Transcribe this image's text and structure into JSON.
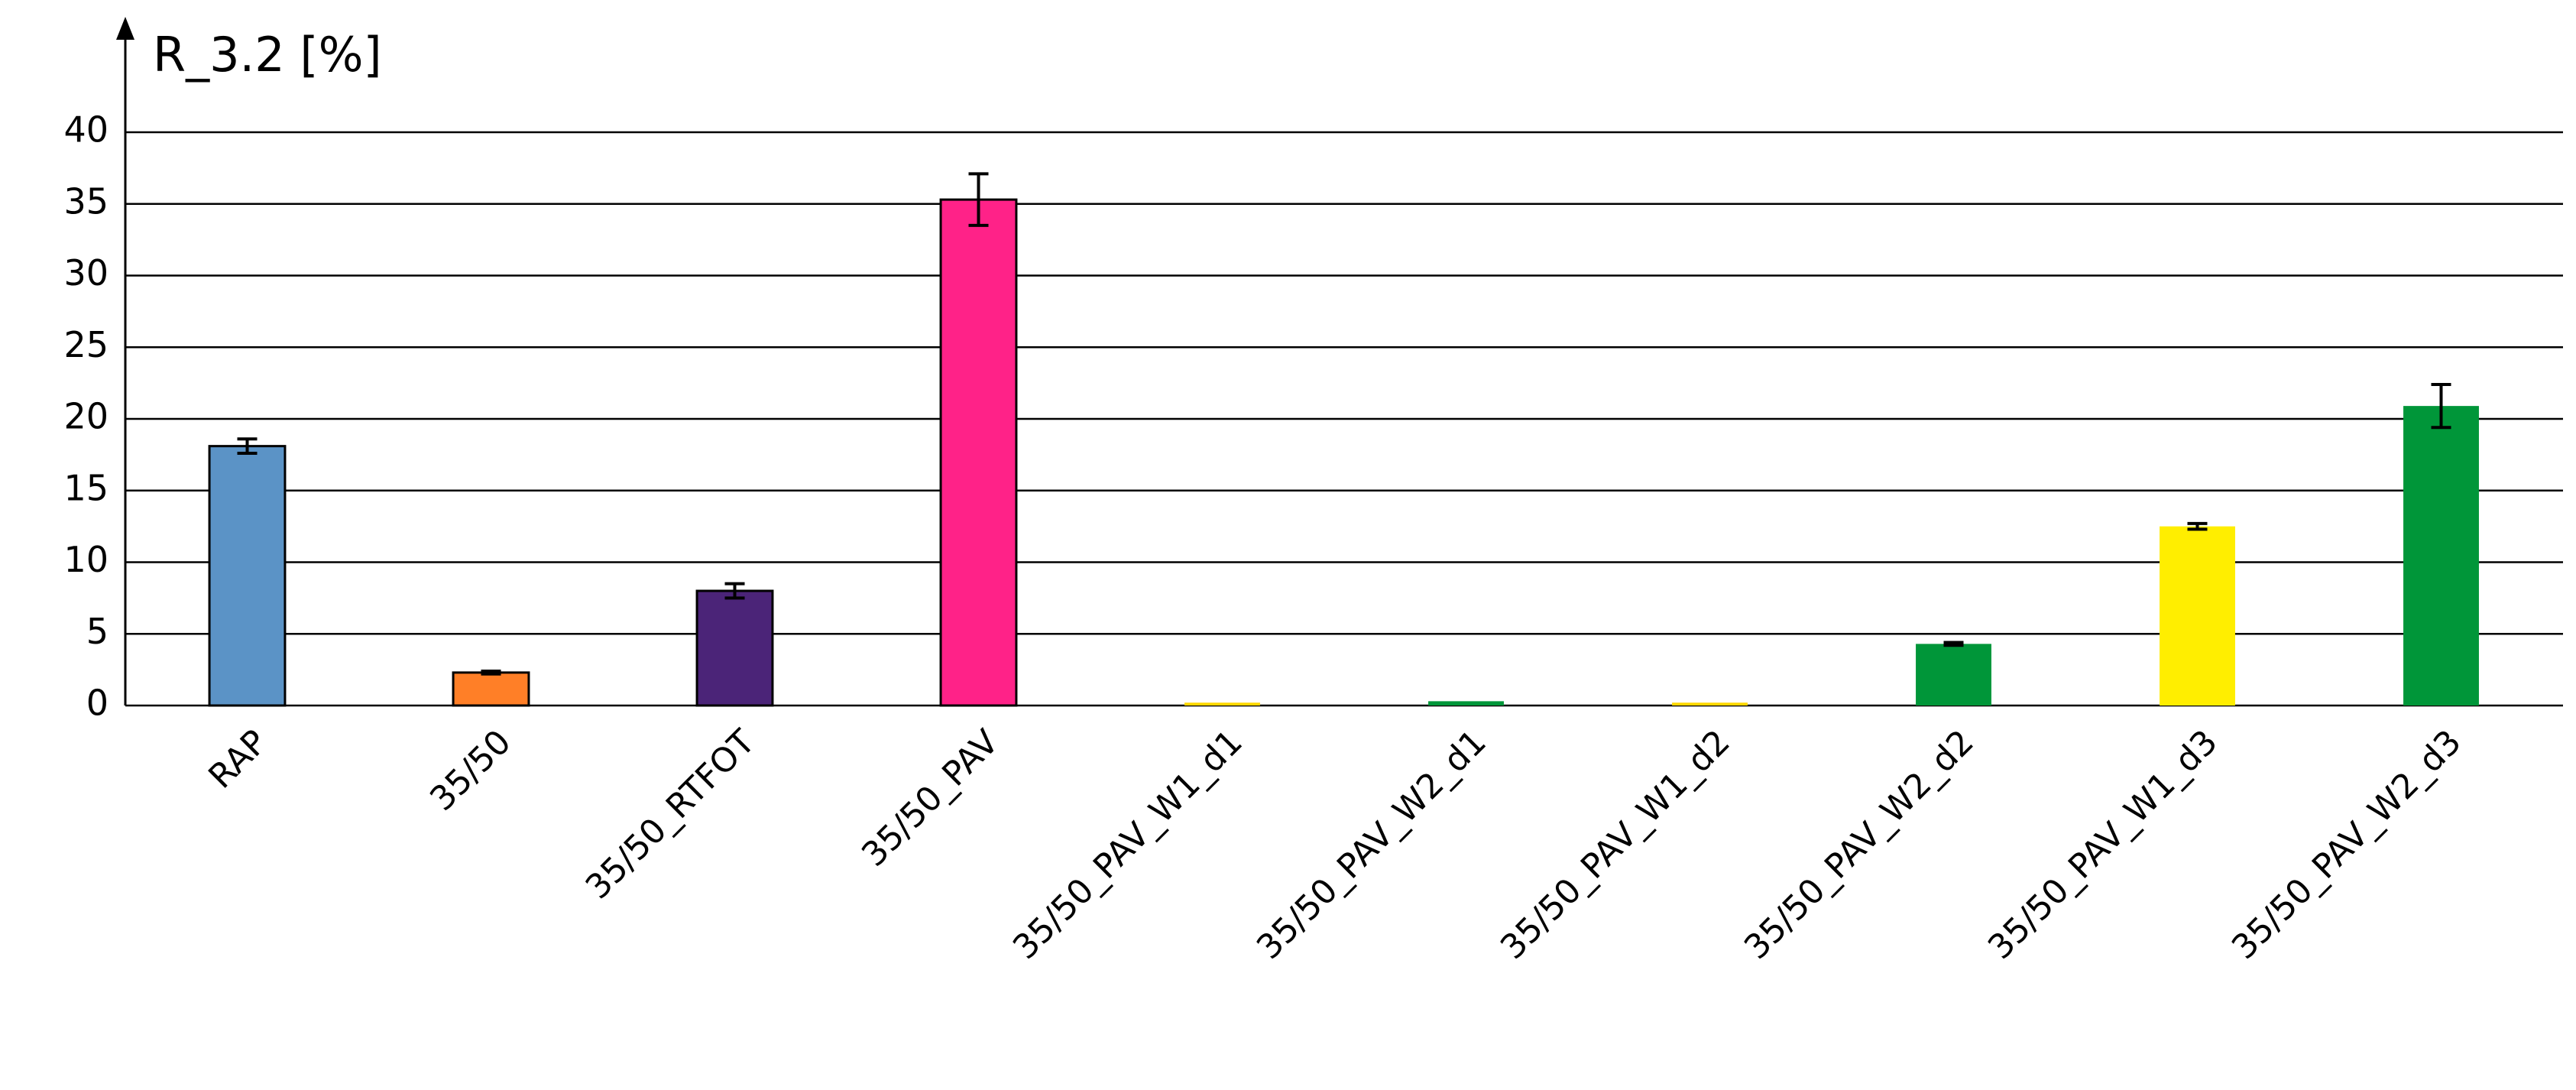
{
  "chart_data": {
    "type": "bar",
    "title": "R_3.2 [%]",
    "categories": [
      "RAP",
      "35/50",
      "35/50_RTFOT",
      "35/50_PAV",
      "35/50_PAV_W1_d1",
      "35/50_PAV_W2_d1",
      "35/50_PAV_W1_d2",
      "35/50_PAV_W2_d2",
      "35/50_PAV_W1_d3",
      "35/50_PAV_W2_d3"
    ],
    "values": [
      18.1,
      2.3,
      8.0,
      35.3,
      0.2,
      0.3,
      0.2,
      4.3,
      12.5,
      20.9
    ],
    "errors": [
      0.5,
      0.1,
      0.5,
      1.8,
      null,
      null,
      null,
      0.1,
      0.2,
      1.5
    ],
    "colors": [
      "#5b93c6",
      "#ff7f27",
      "#4b2478",
      "#ff2288",
      "#ffd700",
      "#009639",
      "#ffd700",
      "#009639",
      "#ffee00",
      "#009639"
    ],
    "edgecolors": [
      "#000000",
      "#000000",
      "#000000",
      "#000000",
      null,
      null,
      null,
      null,
      null,
      null
    ],
    "ylim": [
      0,
      40
    ],
    "yticks": [
      0,
      5,
      10,
      15,
      20,
      25,
      30,
      35,
      40
    ],
    "grid": true
  }
}
